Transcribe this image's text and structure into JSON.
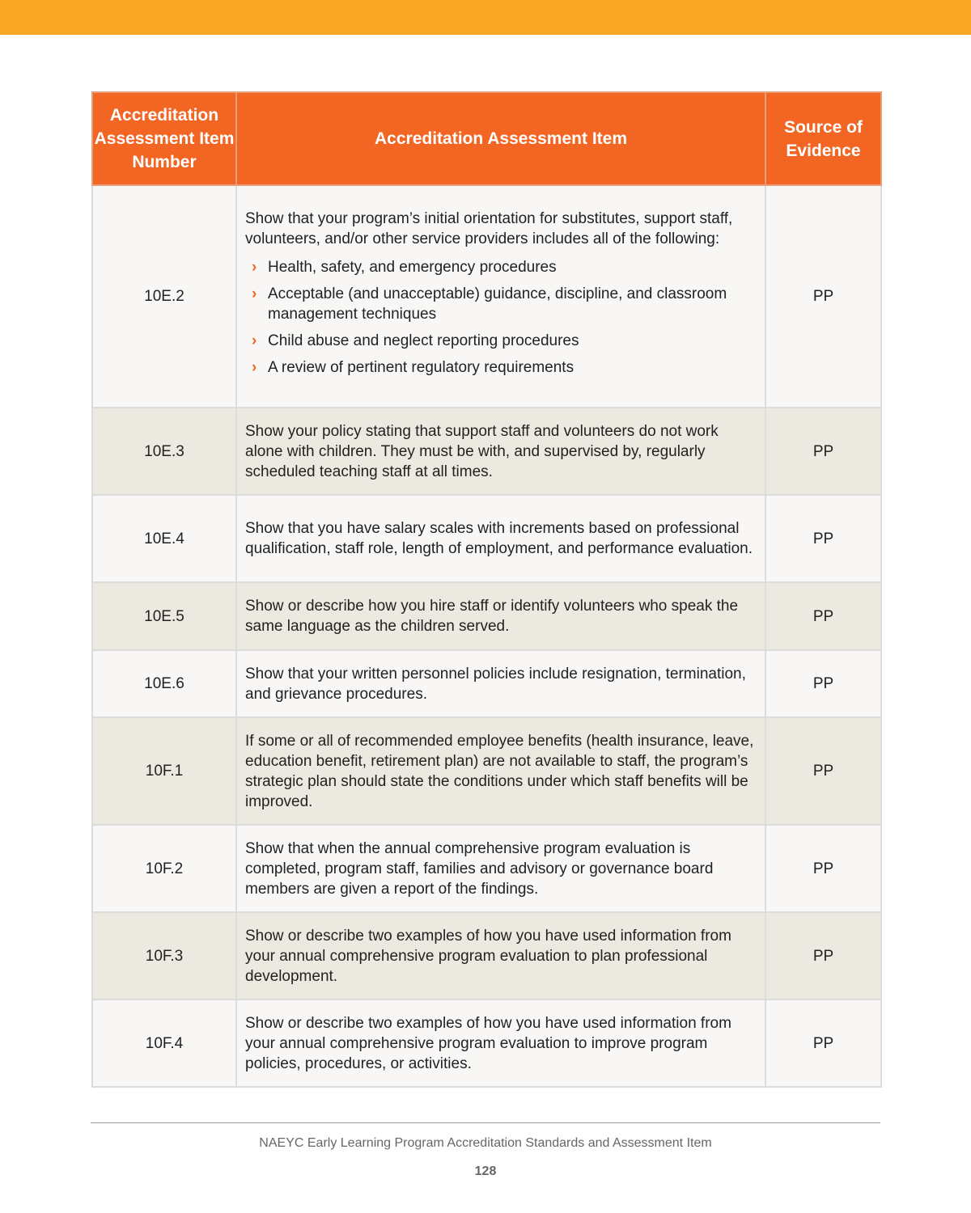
{
  "header": {
    "col1": "Accreditation Assessment Item Number",
    "col2": "Accreditation Assessment Item",
    "col3": "Source of Evidence"
  },
  "rows": [
    {
      "number": "10E.2",
      "item": "Show that your program’s initial orientation for substitutes, support staff, volunteers, and/or other service providers includes all of the following:",
      "bullets": [
        "Health, safety, and emergency procedures",
        "Acceptable (and unacceptable) guidance, discipline, and classroom management techniques",
        "Child abuse and neglect reporting procedures",
        "A review of pertinent regulatory requirements"
      ],
      "source": "PP"
    },
    {
      "number": "10E.3",
      "item": "Show your policy stating that support staff and volunteers do not work alone with children. They must be with, and supervised by, regularly scheduled teaching staff at all times.",
      "source": "PP"
    },
    {
      "number": "10E.4",
      "item": "Show that you have salary scales with increments based on professional qualification, staff role, length of employment, and performance evaluation.",
      "source": "PP"
    },
    {
      "number": "10E.5",
      "item": "Show or describe how you hire staff or identify volunteers who speak the same language as the children served.",
      "source": "PP"
    },
    {
      "number": "10E.6",
      "item": "Show that your written personnel policies include resignation, termination, and grievance procedures.",
      "source": "PP"
    },
    {
      "number": "10F.1",
      "item": "If some or all of recommended employee benefits (health insurance, leave, education benefit, retirement plan) are not available to staff, the program’s strategic plan should state the conditions under which staff benefits will be improved.",
      "source": "PP"
    },
    {
      "number": "10F.2",
      "item": "Show that when the annual comprehensive program evaluation is completed, program staff, families and advisory or governance board members are given a report of the findings.",
      "source": "PP"
    },
    {
      "number": "10F.3",
      "item": "Show or describe two examples of how you have used information from your annual comprehensive program evaluation to plan professional development.",
      "source": "PP"
    },
    {
      "number": "10F.4",
      "item": "Show or describe two examples of how you have used information from your annual comprehensive program evaluation to improve program policies, procedures, or activities.",
      "source": "PP"
    }
  ],
  "footer": {
    "text": "NAEYC Early Learning Program Accreditation Standards and Assessment Item",
    "page": "128"
  },
  "colors": {
    "header": "#f26522",
    "topbar": "#f9a825",
    "bullet": "#f26522"
  }
}
